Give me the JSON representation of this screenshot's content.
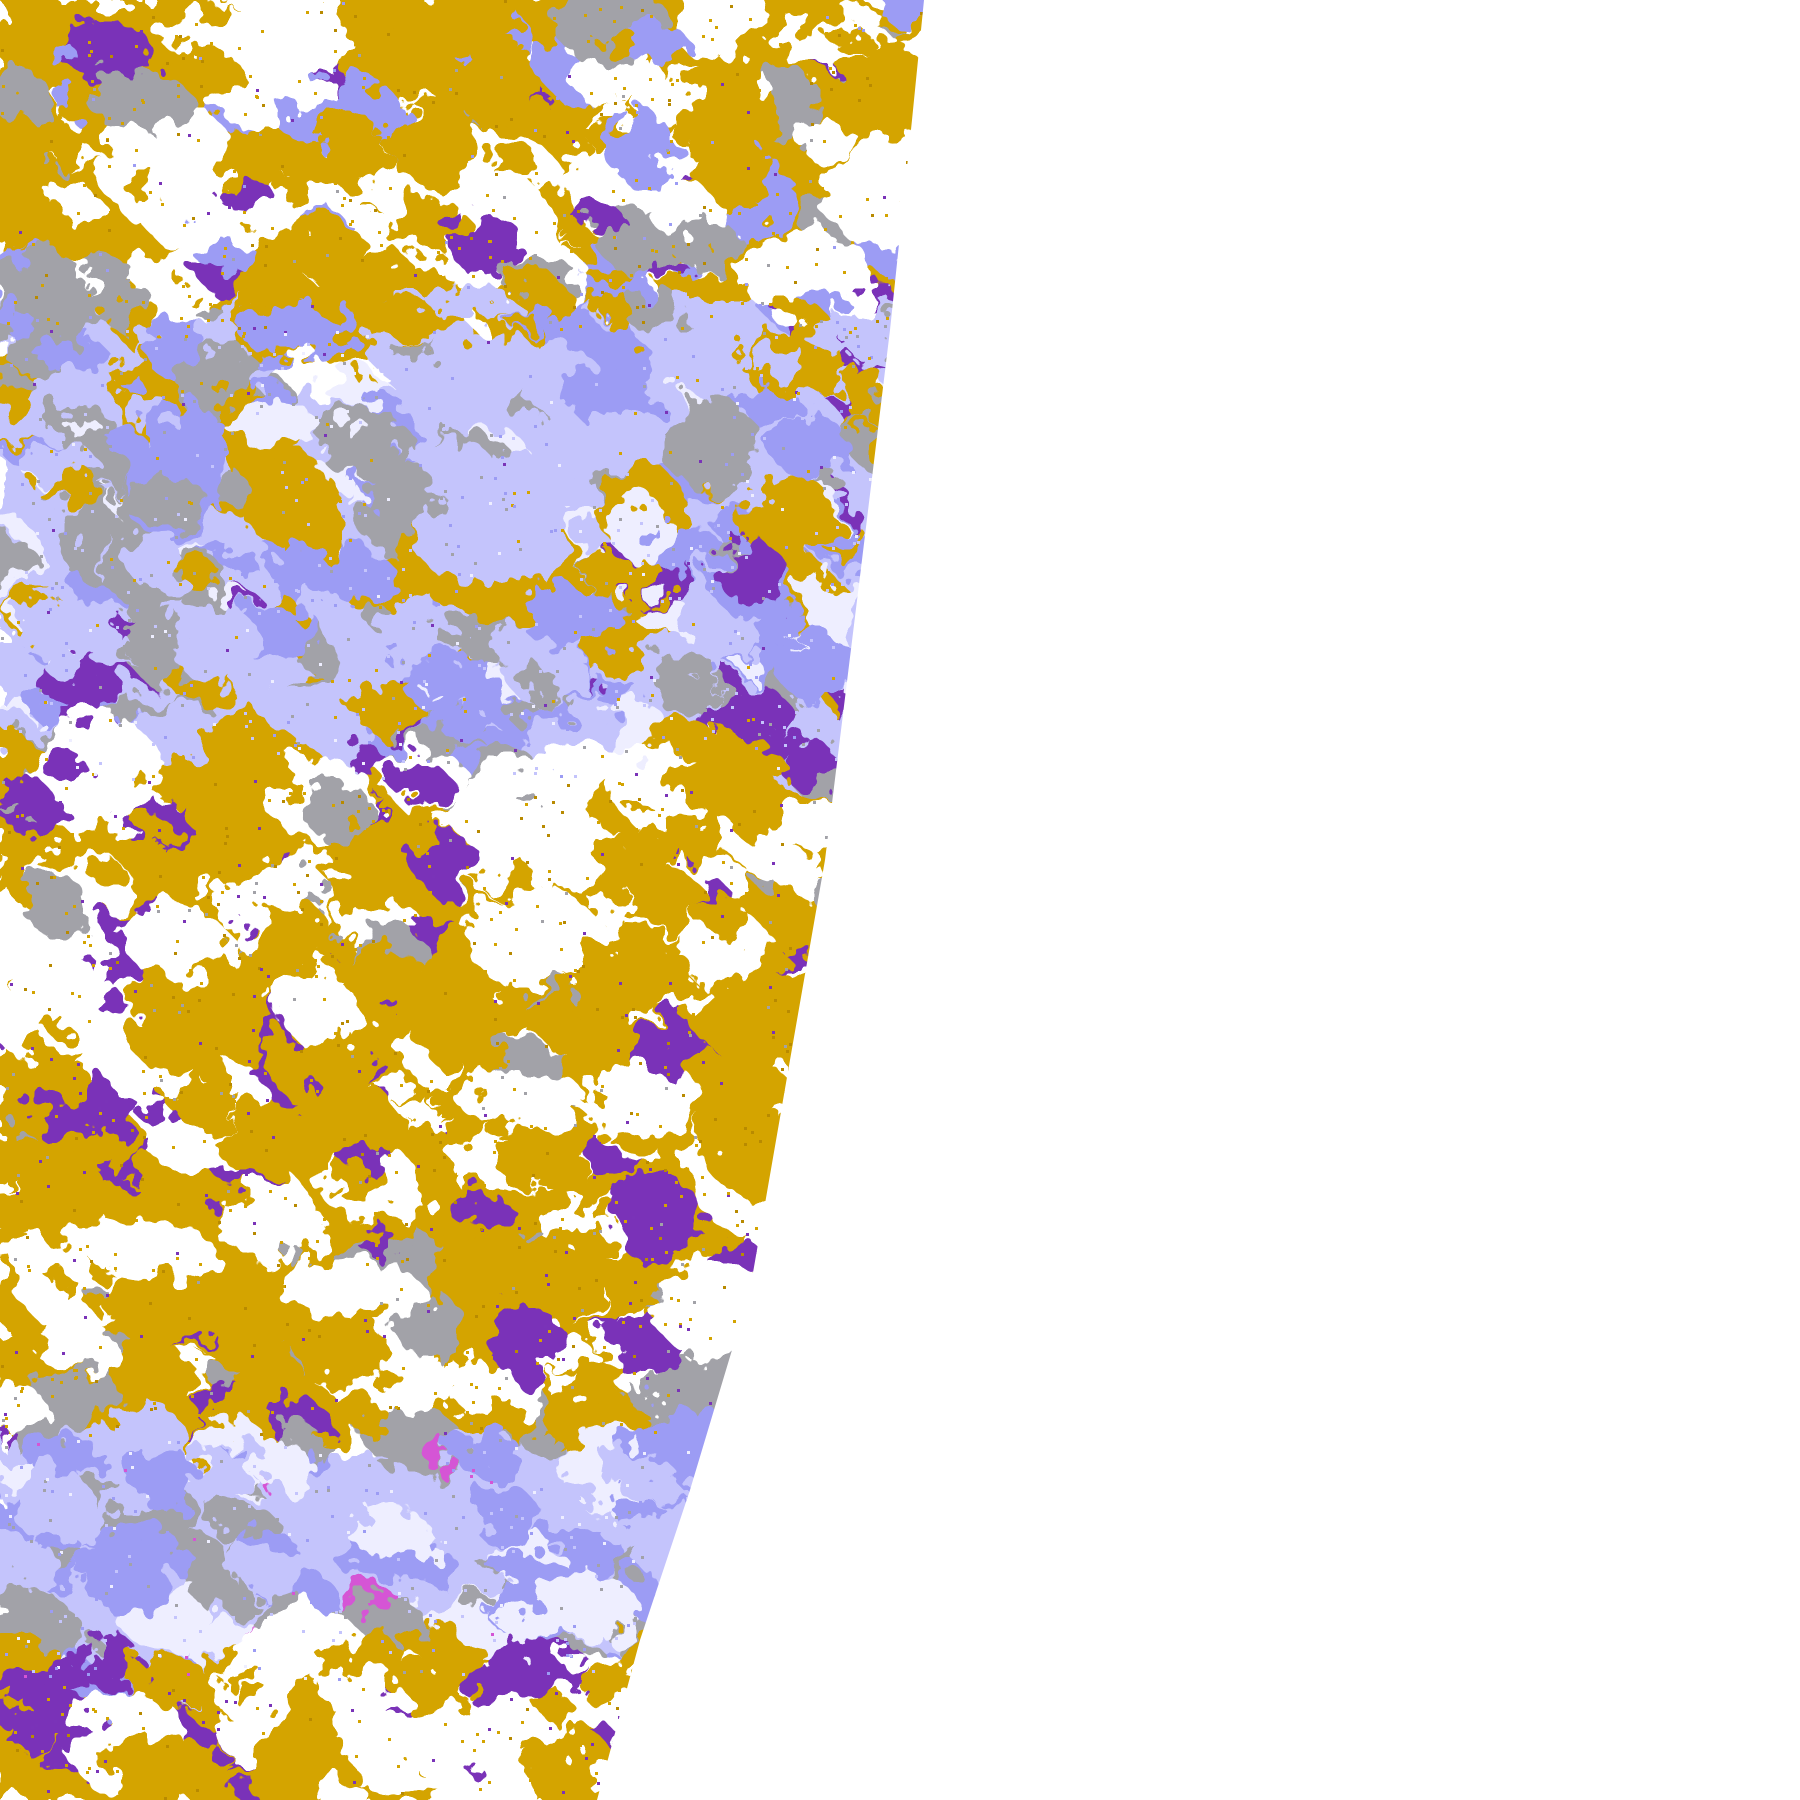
{
  "image": {
    "kind": "satellite cloud-classification swath",
    "background": "#ffffff"
  },
  "palette": {
    "low_cloud_gold": "#d4a400",
    "dark_gold": "#b88a00",
    "high_cloud_purple": "#7a33b8",
    "magenta": "#d555d5",
    "lavender": "#c4c4fc",
    "periwinkle": "#9c9cf4",
    "pale_lavender": "#eeeeff",
    "gray": "#a2a2a8",
    "clear": "#ffffff"
  },
  "bands": [
    {
      "name": "north",
      "mix": {
        "low_cloud_gold": 0.55,
        "gray": 0.1,
        "periwinkle": 0.1,
        "high_cloud_purple": 0.05,
        "clear": 0.2
      }
    },
    {
      "name": "upper-middle",
      "mix": {
        "lavender": 0.3,
        "periwinkle": 0.2,
        "gray": 0.2,
        "pale_lavender": 0.1,
        "low_cloud_gold": 0.15,
        "high_cloud_purple": 0.05
      }
    },
    {
      "name": "middle",
      "mix": {
        "low_cloud_gold": 0.55,
        "high_cloud_purple": 0.15,
        "gray": 0.1,
        "clear": 0.2
      }
    },
    {
      "name": "lower",
      "mix": {
        "lavender": 0.35,
        "periwinkle": 0.25,
        "gray": 0.2,
        "magenta": 0.05,
        "pale_lavender": 0.15
      }
    },
    {
      "name": "south",
      "mix": {
        "low_cloud_gold": 0.55,
        "high_cloud_purple": 0.3,
        "clear": 0.15
      }
    }
  ]
}
